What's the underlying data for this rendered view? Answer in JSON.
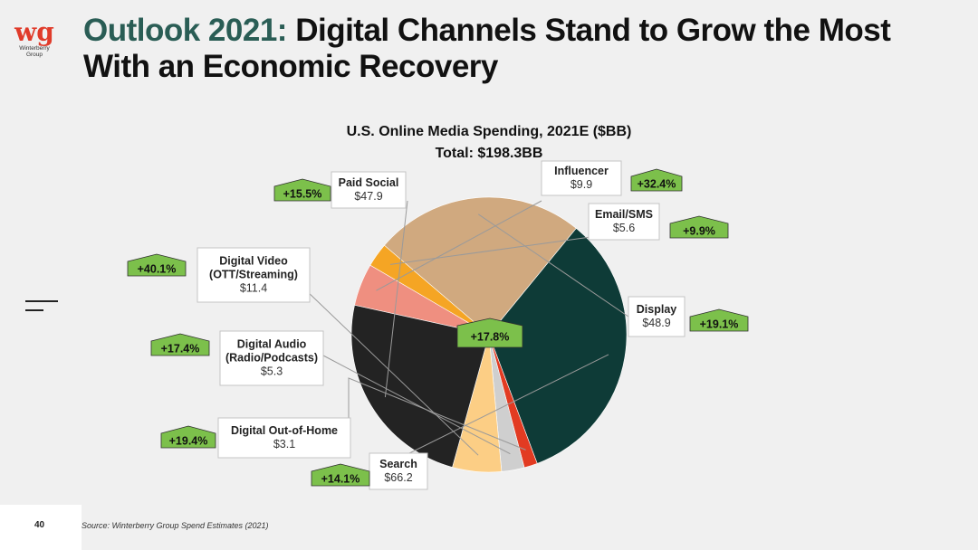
{
  "logo": {
    "mark": "wg",
    "name_line1": "Winterberry",
    "name_line2": "Group"
  },
  "title": {
    "accent": "Outlook 2021:",
    "line1": "Digital Channels Stand to Grow the Most",
    "line2": "With an Economic Recovery"
  },
  "page_number": "40",
  "source": "Source: Winterberry Group Spend Estimates (2021)",
  "colors": {
    "accent": "#2a5d55",
    "growth_badge": "#7cc04b",
    "brand_red": "#e03b2a"
  },
  "chart_data": {
    "type": "pie",
    "title": "U.S. Online Media Spending, 2021E ($BB)",
    "subtitle": "Total: $198.3BB",
    "center_label": "+17.8%",
    "slices": [
      {
        "name": "Influencer",
        "value": 9.9,
        "value_label": "$9.9",
        "growth": "+32.4%",
        "color": "#ef8f80"
      },
      {
        "name": "Email/SMS",
        "value": 5.6,
        "value_label": "$5.6",
        "growth": "+9.9%",
        "color": "#f5a524"
      },
      {
        "name": "Display",
        "value": 48.9,
        "value_label": "$48.9",
        "growth": "+19.1%",
        "color": "#d0a97f"
      },
      {
        "name": "Search",
        "value": 66.2,
        "value_label": "$66.2",
        "growth": "+14.1%",
        "color": "#0e3b37"
      },
      {
        "name": "Digital Out-of-Home",
        "value": 3.1,
        "value_label": "$3.1",
        "growth": "+19.4%",
        "color": "#e23b22"
      },
      {
        "name": "Digital Audio (Radio/Podcasts)",
        "value": 5.3,
        "value_label": "$5.3",
        "growth": "+17.4%",
        "color": "#cfcfcf"
      },
      {
        "name": "Digital Video (OTT/Streaming)",
        "value": 11.4,
        "value_label": "$11.4",
        "growth": "+40.1%",
        "color": "#fcce85"
      },
      {
        "name": "Paid Social",
        "value": 47.9,
        "value_label": "$47.9",
        "growth": "+15.5%",
        "color": "#232323"
      }
    ],
    "labels": [
      {
        "slice": 0,
        "lines": [
          "Influencer"
        ]
      },
      {
        "slice": 1,
        "lines": [
          "Email/SMS"
        ]
      },
      {
        "slice": 2,
        "lines": [
          "Display"
        ]
      },
      {
        "slice": 3,
        "lines": [
          "Search"
        ]
      },
      {
        "slice": 4,
        "lines": [
          "Digital Out-of-Home"
        ]
      },
      {
        "slice": 5,
        "lines": [
          "Digital Audio",
          "(Radio/Podcasts)"
        ]
      },
      {
        "slice": 6,
        "lines": [
          "Digital Video",
          "(OTT/Streaming)"
        ]
      },
      {
        "slice": 7,
        "lines": [
          "Paid Social"
        ]
      }
    ]
  }
}
